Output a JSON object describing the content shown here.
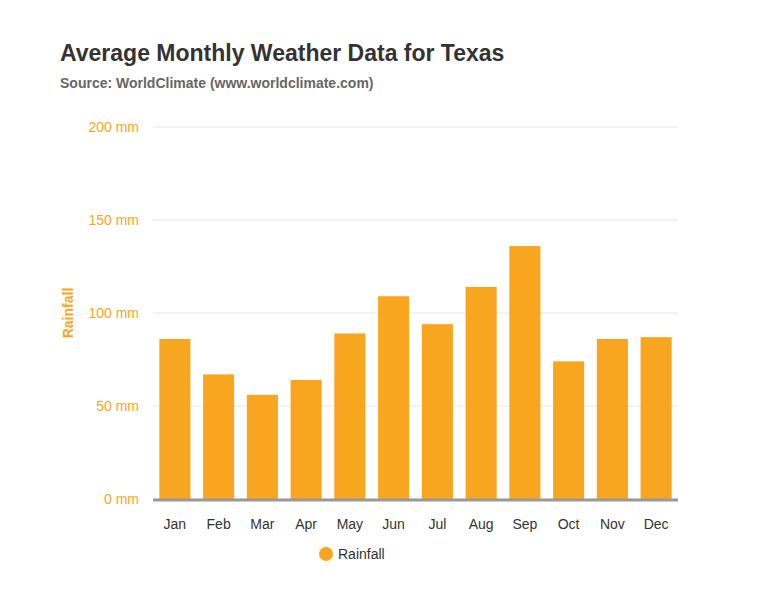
{
  "chart_data": {
    "type": "bar",
    "title": "Average Monthly Weather Data for Texas",
    "subtitle": "Source: WorldClimate (www.worldclimate.com)",
    "ylabel": "Rainfall",
    "categories": [
      "Jan",
      "Feb",
      "Mar",
      "Apr",
      "May",
      "Jun",
      "Jul",
      "Aug",
      "Sep",
      "Oct",
      "Nov",
      "Dec"
    ],
    "series": [
      {
        "name": "Rainfall",
        "color": "#f8a51f",
        "values": [
          86,
          67,
          56,
          64,
          89,
          109,
          94,
          114,
          136,
          74,
          86,
          87
        ]
      }
    ],
    "ylim": [
      0,
      200
    ],
    "yticks": [
      {
        "value": 0,
        "label": "0 mm"
      },
      {
        "value": 50,
        "label": "50 mm"
      },
      {
        "value": 100,
        "label": "100 mm"
      },
      {
        "value": 150,
        "label": "150 mm"
      },
      {
        "value": 200,
        "label": "200 mm"
      }
    ],
    "grid": true,
    "legend": "bottom"
  }
}
